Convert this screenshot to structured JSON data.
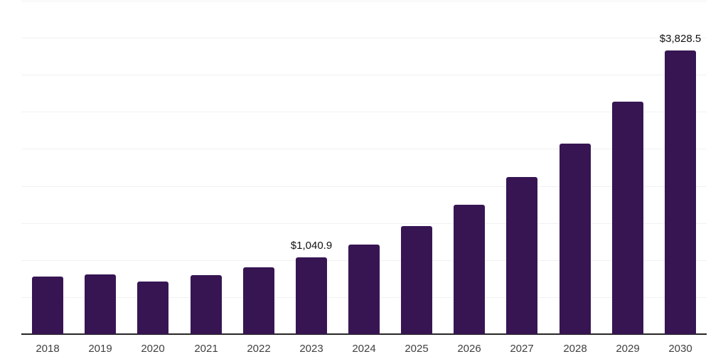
{
  "chart_data": {
    "type": "bar",
    "title": "",
    "xlabel": "",
    "ylabel": "",
    "categories": [
      "2018",
      "2019",
      "2020",
      "2021",
      "2022",
      "2023",
      "2024",
      "2025",
      "2026",
      "2027",
      "2028",
      "2029",
      "2030"
    ],
    "values": [
      777,
      806,
      710,
      796,
      902,
      1040.9,
      1209,
      1455,
      1750,
      2120,
      2568,
      3140,
      3828.5
    ],
    "data_labels": [
      {
        "category": "2023",
        "text": "$1,040.9"
      },
      {
        "category": "2030",
        "text": "$3,828.5"
      }
    ],
    "ylim": [
      0,
      4500
    ],
    "gridline_interval": 500,
    "grid": "horizontal-only",
    "y_axis_labels": "none",
    "legend": "none",
    "colors": {
      "bar": "#371553",
      "axis_line": "#262626",
      "gridline": "#f1f1f1",
      "data_label": "#111111",
      "tick_label": "#404040",
      "background": "#ffffff"
    }
  }
}
